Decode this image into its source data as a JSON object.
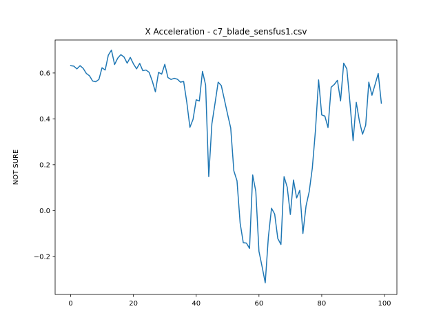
{
  "chart_data": {
    "type": "line",
    "title": "X Acceleration - c7_blade_sensfus1.csv",
    "xlabel": "",
    "ylabel": "NOT SURE",
    "xlim": [
      -4.95,
      103.95
    ],
    "ylim": [
      -0.366,
      0.744
    ],
    "xticks": [
      0,
      20,
      40,
      60,
      80,
      100
    ],
    "yticks": [
      -0.2,
      0.0,
      0.2,
      0.4,
      0.6
    ],
    "ytick_labels": [
      "−0.2",
      "0.0",
      "0.2",
      "0.4",
      "0.6"
    ],
    "grid": false,
    "color": "#1f77b4",
    "series": [
      {
        "x": [
          0,
          1,
          2,
          3,
          4,
          5,
          6,
          7,
          8,
          9,
          10,
          11,
          12,
          13,
          14,
          15,
          16,
          17,
          18,
          19,
          20,
          21,
          22,
          23,
          24,
          25,
          26,
          27,
          28,
          29,
          30,
          31,
          32,
          33,
          34,
          35,
          36,
          37,
          38,
          39,
          40,
          41,
          42,
          43,
          44,
          45,
          46,
          47,
          48,
          49,
          50,
          51,
          52,
          53,
          54,
          55,
          56,
          57,
          58,
          59,
          60,
          61,
          62,
          63,
          64,
          65,
          66,
          67,
          68,
          69,
          70,
          71,
          72,
          73,
          74,
          75,
          76,
          77,
          78,
          79,
          80,
          81,
          82,
          83,
          84,
          85,
          86,
          87,
          88,
          89,
          90,
          91,
          92,
          93,
          94,
          95,
          96,
          97,
          98,
          99
        ],
        "y": [
          0.632,
          0.63,
          0.618,
          0.632,
          0.62,
          0.598,
          0.588,
          0.565,
          0.562,
          0.572,
          0.623,
          0.613,
          0.678,
          0.7,
          0.637,
          0.665,
          0.68,
          0.67,
          0.643,
          0.668,
          0.64,
          0.618,
          0.642,
          0.61,
          0.613,
          0.603,
          0.565,
          0.518,
          0.603,
          0.595,
          0.638,
          0.58,
          0.572,
          0.577,
          0.573,
          0.56,
          0.563,
          0.473,
          0.363,
          0.398,
          0.483,
          0.478,
          0.607,
          0.548,
          0.148,
          0.378,
          0.468,
          0.56,
          0.545,
          0.483,
          0.42,
          0.36,
          0.173,
          0.13,
          -0.055,
          -0.14,
          -0.142,
          -0.165,
          0.155,
          0.083,
          -0.178,
          -0.245,
          -0.315,
          -0.115,
          0.01,
          -0.015,
          -0.122,
          -0.148,
          0.148,
          0.102,
          -0.017,
          0.133,
          0.055,
          0.088,
          -0.1,
          0.02,
          0.082,
          0.185,
          0.35,
          0.57,
          0.417,
          0.412,
          0.362,
          0.538,
          0.55,
          0.568,
          0.478,
          0.643,
          0.618,
          0.47,
          0.305,
          0.472,
          0.39,
          0.333,
          0.372,
          0.56,
          0.503,
          0.55,
          0.598,
          0.468
        ]
      }
    ]
  }
}
